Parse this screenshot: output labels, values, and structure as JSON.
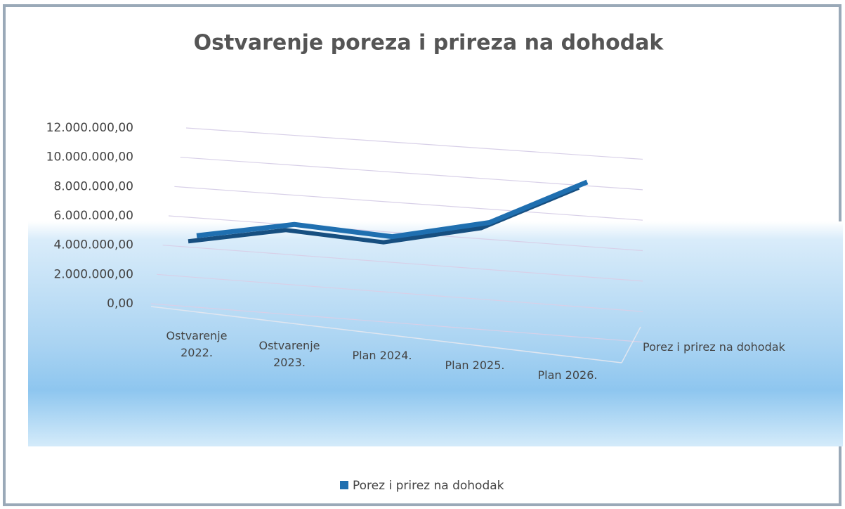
{
  "chart_data": {
    "type": "line3d",
    "title": "Ostvarenje poreza i prireza na dohodak",
    "categories": [
      "Ostvarenje 2022.",
      "Ostvarenje 2023.",
      "Plan 2024.",
      "Plan 2025.",
      "Plan 2026."
    ],
    "series": [
      {
        "name": "Porez i prirez na dohodak",
        "color": "#1f6fb0",
        "values": [
          4800000,
          6000000,
          5600000,
          7000000,
          10200000
        ]
      }
    ],
    "ylim": [
      0,
      12000000
    ],
    "yticks": [
      {
        "value": 0,
        "label": "0,00"
      },
      {
        "value": 2000000,
        "label": "2.000.000,00"
      },
      {
        "value": 4000000,
        "label": "4.000.000,00"
      },
      {
        "value": 6000000,
        "label": "6.000.000,00"
      },
      {
        "value": 8000000,
        "label": "8.000.000,00"
      },
      {
        "value": 10000000,
        "label": "10.000.000,00"
      },
      {
        "value": 12000000,
        "label": "12.000.000,00"
      }
    ],
    "grid": true,
    "legend": "bottom"
  }
}
